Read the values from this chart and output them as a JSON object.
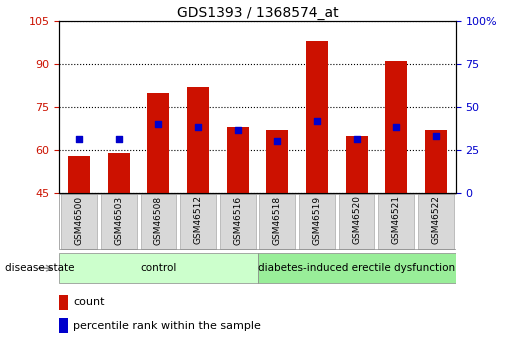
{
  "title": "GDS1393 / 1368574_at",
  "samples": [
    "GSM46500",
    "GSM46503",
    "GSM46508",
    "GSM46512",
    "GSM46516",
    "GSM46518",
    "GSM46519",
    "GSM46520",
    "GSM46521",
    "GSM46522"
  ],
  "counts": [
    58,
    59,
    80,
    82,
    68,
    67,
    98,
    65,
    91,
    67
  ],
  "percentiles_left": [
    64,
    64,
    69,
    68,
    67,
    63,
    70,
    64,
    68,
    65
  ],
  "ymin": 45,
  "ymax": 105,
  "yticks_left": [
    45,
    60,
    75,
    90,
    105
  ],
  "yticks_right": [
    0,
    25,
    50,
    75,
    100
  ],
  "bar_color": "#cc1100",
  "marker_color": "#0000cc",
  "bar_bottom": 45,
  "groups": [
    {
      "label": "control",
      "indices": [
        0,
        1,
        2,
        3,
        4
      ],
      "color": "#ccffcc"
    },
    {
      "label": "diabetes-induced erectile dysfunction",
      "indices": [
        5,
        6,
        7,
        8,
        9
      ],
      "color": "#99ee99"
    }
  ],
  "legend_count_label": "count",
  "legend_pct_label": "percentile rank within the sample",
  "title_fontsize": 10,
  "tick_fontsize": 8,
  "axis_label_color_left": "#cc1100",
  "axis_label_color_right": "#0000cc"
}
